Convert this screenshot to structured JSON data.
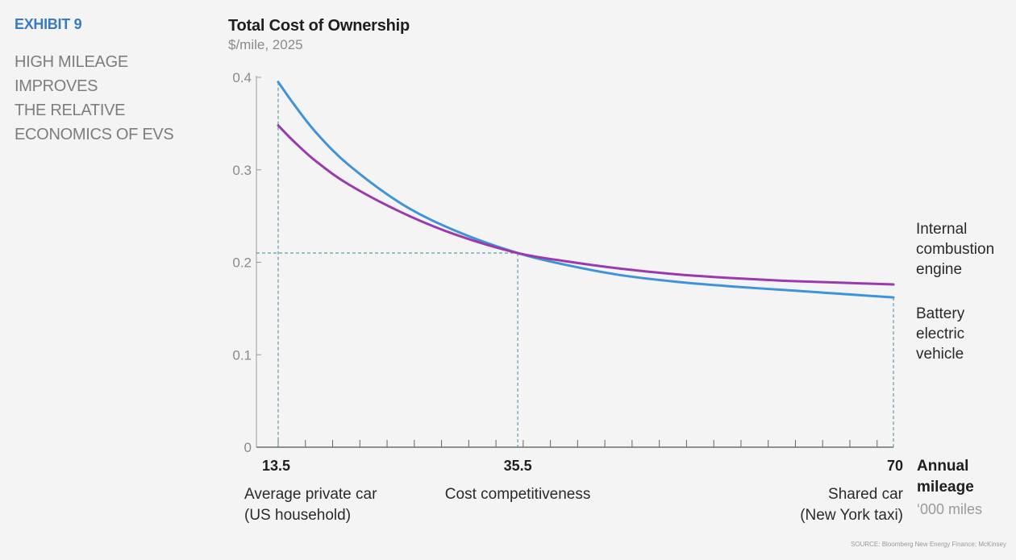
{
  "exhibit": {
    "tag": "EXHIBIT 9",
    "headline_lines": [
      "HIGH MILEAGE",
      "IMPROVES",
      "THE RELATIVE",
      "ECONOMICS OF EVS"
    ]
  },
  "source": "SOURCE: Bloomberg New Energy Finance; McKinsey",
  "colors": {
    "bev": "#3f93d8",
    "ice": "#9b3aac",
    "guide": "#5a9fa8",
    "axis": "#9a9a9a",
    "tick_text": "#8a8a8a"
  },
  "chart_data": {
    "type": "line",
    "title": "Total Cost of Ownership",
    "subtitle": "$/mile, 2025",
    "xlabel": "Annual mileage",
    "xunit": "‘000 miles",
    "xlim": [
      13.5,
      70
    ],
    "ylim": [
      0,
      0.4
    ],
    "y_ticks": [
      "0",
      "0.1",
      "0.2",
      "0.3",
      "0.4"
    ],
    "y_tick_values": [
      0,
      0.1,
      0.2,
      0.3,
      0.4
    ],
    "x_tick_labels": [
      "13.5",
      "35.5",
      "70"
    ],
    "x_tick_values": [
      13.5,
      35.5,
      70
    ],
    "x_annotations": [
      {
        "x": 13.5,
        "lines": [
          "Average private car",
          "(US household)"
        ],
        "align": "left"
      },
      {
        "x": 35.5,
        "lines": [
          "Cost competitiveness"
        ],
        "align": "center"
      },
      {
        "x": 70,
        "lines": [
          "Shared car",
          "(New York taxi)"
        ],
        "align": "right"
      }
    ],
    "guide_lines": {
      "x": [
        13.5,
        35.5,
        70
      ],
      "y": 0.21
    },
    "series": [
      {
        "name": "Battery electric vehicle",
        "label_lines": [
          "Battery",
          "electric",
          "vehicle"
        ],
        "color_key": "bev",
        "x": [
          13.5,
          15,
          17,
          20,
          25,
          30,
          35.5,
          40,
          45,
          50,
          55,
          60,
          65,
          70
        ],
        "y": [
          0.395,
          0.37,
          0.34,
          0.305,
          0.262,
          0.233,
          0.21,
          0.197,
          0.186,
          0.179,
          0.174,
          0.17,
          0.166,
          0.162
        ]
      },
      {
        "name": "Internal combustion engine",
        "label_lines": [
          "Internal",
          "combustion",
          "engine"
        ],
        "color_key": "ice",
        "x": [
          13.5,
          15,
          17,
          20,
          25,
          30,
          35.5,
          40,
          45,
          50,
          55,
          60,
          65,
          70
        ],
        "y": [
          0.348,
          0.33,
          0.309,
          0.284,
          0.253,
          0.229,
          0.21,
          0.201,
          0.193,
          0.187,
          0.183,
          0.18,
          0.178,
          0.176
        ]
      }
    ]
  }
}
